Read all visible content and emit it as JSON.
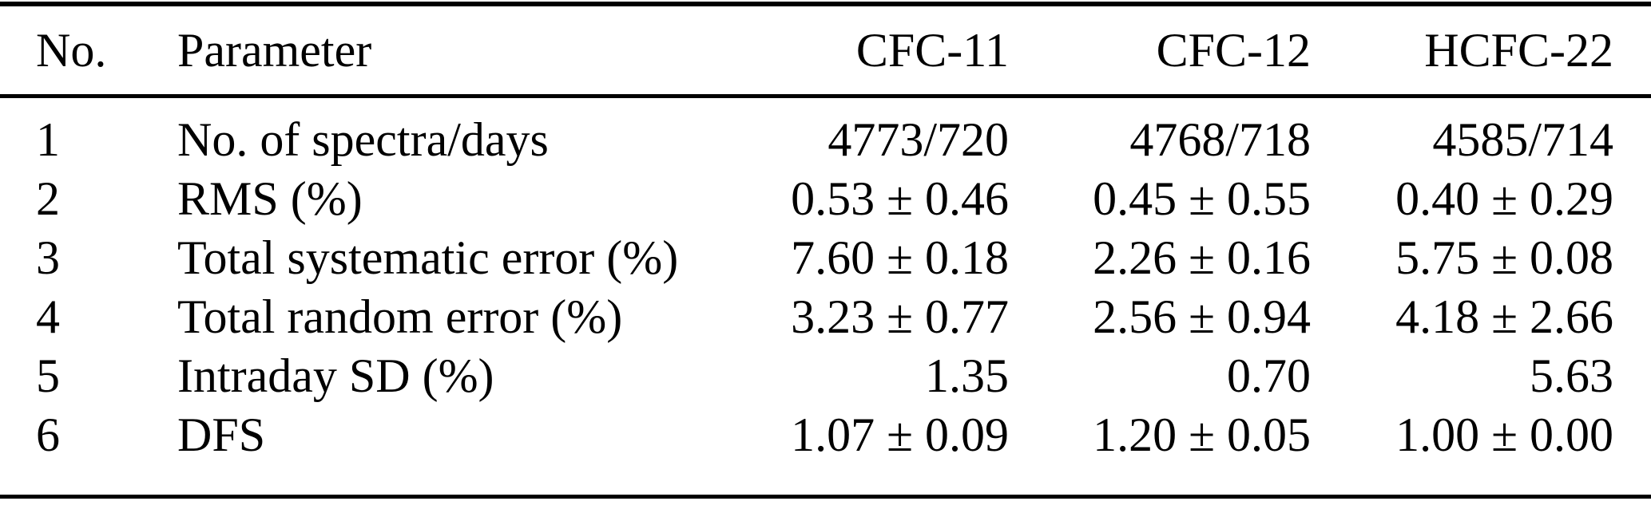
{
  "table": {
    "columns": [
      "No.",
      "Parameter",
      "CFC-11",
      "CFC-12",
      "HCFC-22"
    ],
    "rows": [
      {
        "no": "1",
        "parameter": "No. of spectra/days",
        "cfc11": "4773/720",
        "cfc12": "4768/718",
        "hcfc22": "4585/714"
      },
      {
        "no": "2",
        "parameter": "RMS (%)",
        "cfc11": "0.53 ± 0.46",
        "cfc12": "0.45 ± 0.55",
        "hcfc22": "0.40 ± 0.29"
      },
      {
        "no": "3",
        "parameter": "Total systematic error (%)",
        "cfc11": "7.60 ± 0.18",
        "cfc12": "2.26 ± 0.16",
        "hcfc22": "5.75 ± 0.08"
      },
      {
        "no": "4",
        "parameter": "Total random error (%)",
        "cfc11": "3.23 ± 0.77",
        "cfc12": "2.56 ± 0.94",
        "hcfc22": "4.18 ± 2.66"
      },
      {
        "no": "5",
        "parameter": "Intraday SD (%)",
        "cfc11": "1.35",
        "cfc12": "0.70",
        "hcfc22": "5.63"
      },
      {
        "no": "6",
        "parameter": "DFS",
        "cfc11": "1.07 ± 0.09",
        "cfc12": "1.20 ± 0.05",
        "hcfc22": "1.00 ± 0.00"
      }
    ],
    "colors": {
      "text": "#000000",
      "background": "#ffffff",
      "rule": "#000000"
    }
  }
}
